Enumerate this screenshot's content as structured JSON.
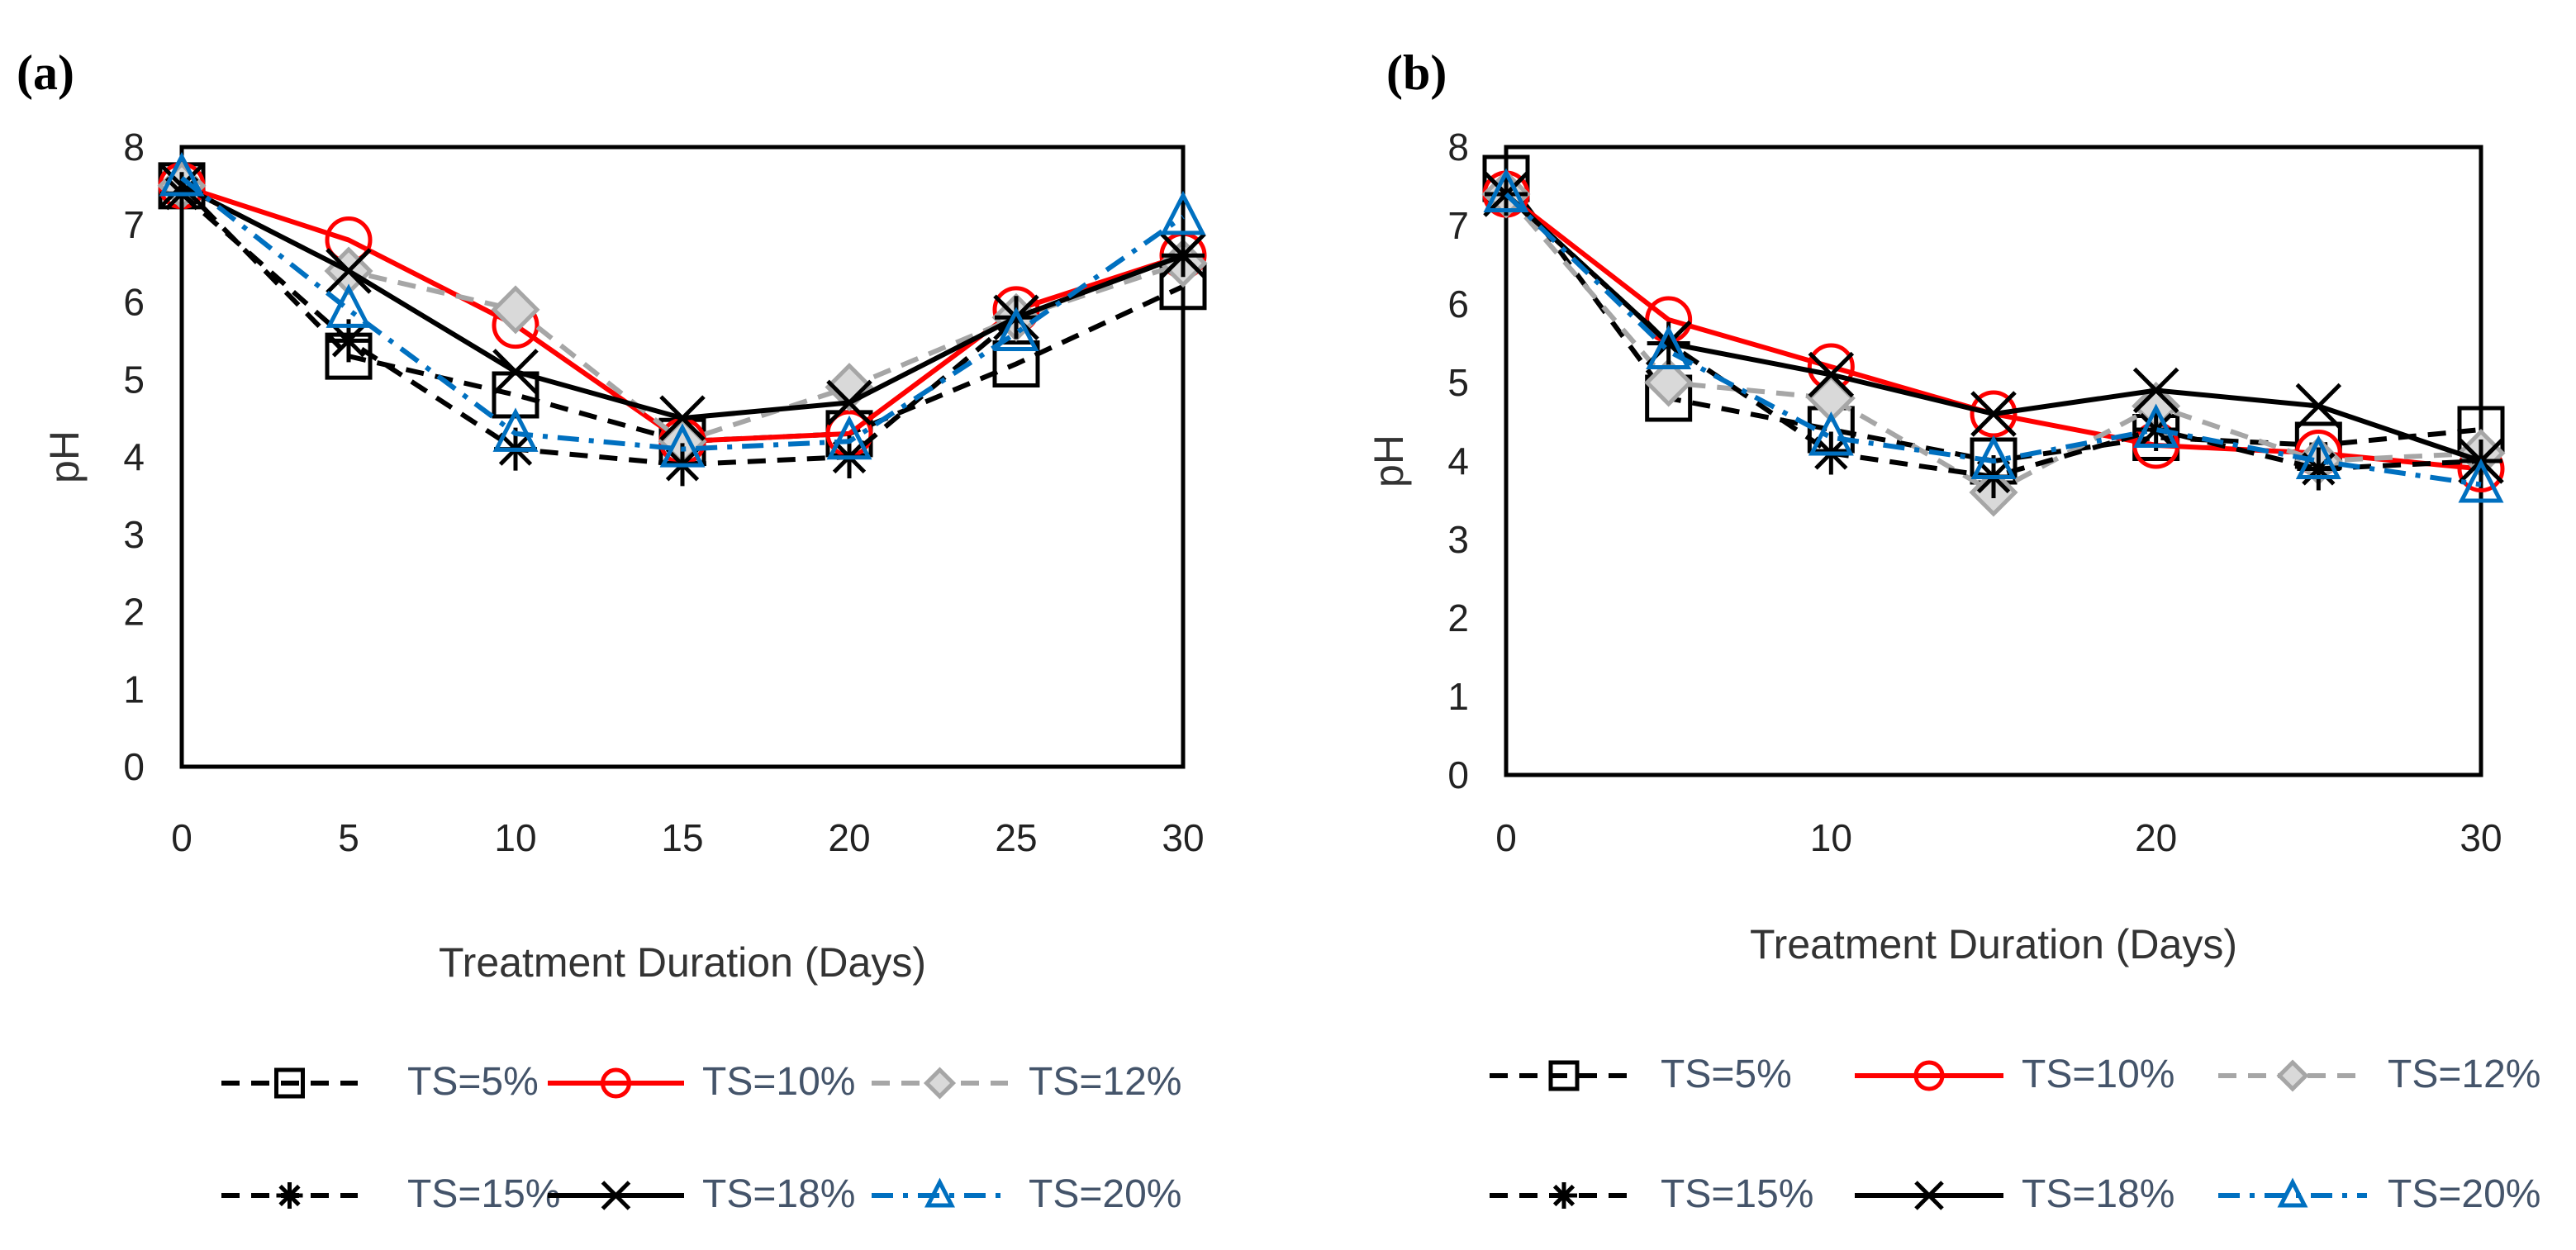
{
  "chart_data": [
    {
      "type": "line",
      "panel_label": "(a)",
      "title": "",
      "xlabel": "Treatment Duration (Days)",
      "ylabel": "pH",
      "x": [
        0,
        5,
        10,
        15,
        20,
        25,
        30
      ],
      "x_ticks": [
        "0",
        "5",
        "10",
        "15",
        "20",
        "25",
        "30"
      ],
      "xlim": [
        0,
        30
      ],
      "ylim": [
        0,
        8
      ],
      "y_ticks": [
        "0",
        "1",
        "2",
        "3",
        "4",
        "5",
        "6",
        "7",
        "8"
      ],
      "grid": false,
      "legend_position": "bottom",
      "series": [
        {
          "name": "TS=5%",
          "color": "#000000",
          "dash": "dashed",
          "marker": "square",
          "values": [
            7.5,
            5.3,
            4.8,
            4.2,
            4.3,
            5.2,
            6.2
          ]
        },
        {
          "name": "TS=10%",
          "color": "#ff0000",
          "dash": "solid",
          "marker": "circle",
          "values": [
            7.5,
            6.8,
            5.7,
            4.2,
            4.3,
            5.9,
            6.6
          ]
        },
        {
          "name": "TS=12%",
          "color": "#a6a6a6",
          "dash": "dashed",
          "marker": "diamond",
          "values": [
            7.5,
            6.4,
            5.9,
            4.2,
            4.9,
            5.8,
            6.5
          ]
        },
        {
          "name": "TS=15%",
          "color": "#000000",
          "dash": "dashed",
          "marker": "asterisk",
          "values": [
            7.4,
            5.5,
            4.1,
            3.9,
            4.0,
            5.8,
            6.6
          ]
        },
        {
          "name": "TS=18%",
          "color": "#000000",
          "dash": "solid",
          "marker": "x",
          "values": [
            7.5,
            6.4,
            5.1,
            4.5,
            4.7,
            5.8,
            6.6
          ]
        },
        {
          "name": "TS=20%",
          "color": "#0070c0",
          "dash": "dashdot",
          "marker": "triangle",
          "values": [
            7.6,
            5.9,
            4.3,
            4.1,
            4.2,
            5.6,
            7.1
          ]
        }
      ]
    },
    {
      "type": "line",
      "panel_label": "(b)",
      "title": "",
      "xlabel": "Treatment Duration (Days)",
      "ylabel": "pH",
      "x": [
        0,
        5,
        10,
        15,
        20,
        25,
        30
      ],
      "x_ticks": [
        "0",
        "10",
        "20",
        "30"
      ],
      "x_tick_values": [
        0,
        10,
        20,
        30
      ],
      "xlim": [
        0,
        30
      ],
      "ylim": [
        0,
        8
      ],
      "y_ticks": [
        "0",
        "1",
        "2",
        "3",
        "4",
        "5",
        "6",
        "7",
        "8"
      ],
      "grid": false,
      "legend_position": "bottom",
      "series": [
        {
          "name": "TS=5%",
          "color": "#000000",
          "dash": "dashed",
          "marker": "square",
          "values": [
            7.6,
            4.8,
            4.4,
            4.0,
            4.3,
            4.2,
            4.4
          ]
        },
        {
          "name": "TS=10%",
          "color": "#ff0000",
          "dash": "solid",
          "marker": "circle",
          "values": [
            7.4,
            5.8,
            5.2,
            4.6,
            4.2,
            4.1,
            3.9
          ]
        },
        {
          "name": "TS=12%",
          "color": "#a6a6a6",
          "dash": "dashed",
          "marker": "diamond",
          "values": [
            7.4,
            5.0,
            4.8,
            3.6,
            4.7,
            4.0,
            4.1
          ]
        },
        {
          "name": "TS=15%",
          "color": "#000000",
          "dash": "dashed",
          "marker": "asterisk",
          "values": [
            7.4,
            5.5,
            4.1,
            3.8,
            4.4,
            3.9,
            4.0
          ]
        },
        {
          "name": "TS=18%",
          "color": "#000000",
          "dash": "solid",
          "marker": "x",
          "values": [
            7.4,
            5.5,
            5.1,
            4.6,
            4.9,
            4.7,
            4.0
          ]
        },
        {
          "name": "TS=20%",
          "color": "#0070c0",
          "dash": "dashdot",
          "marker": "triangle",
          "values": [
            7.4,
            5.4,
            4.3,
            4.0,
            4.4,
            4.0,
            3.7
          ]
        }
      ]
    }
  ]
}
